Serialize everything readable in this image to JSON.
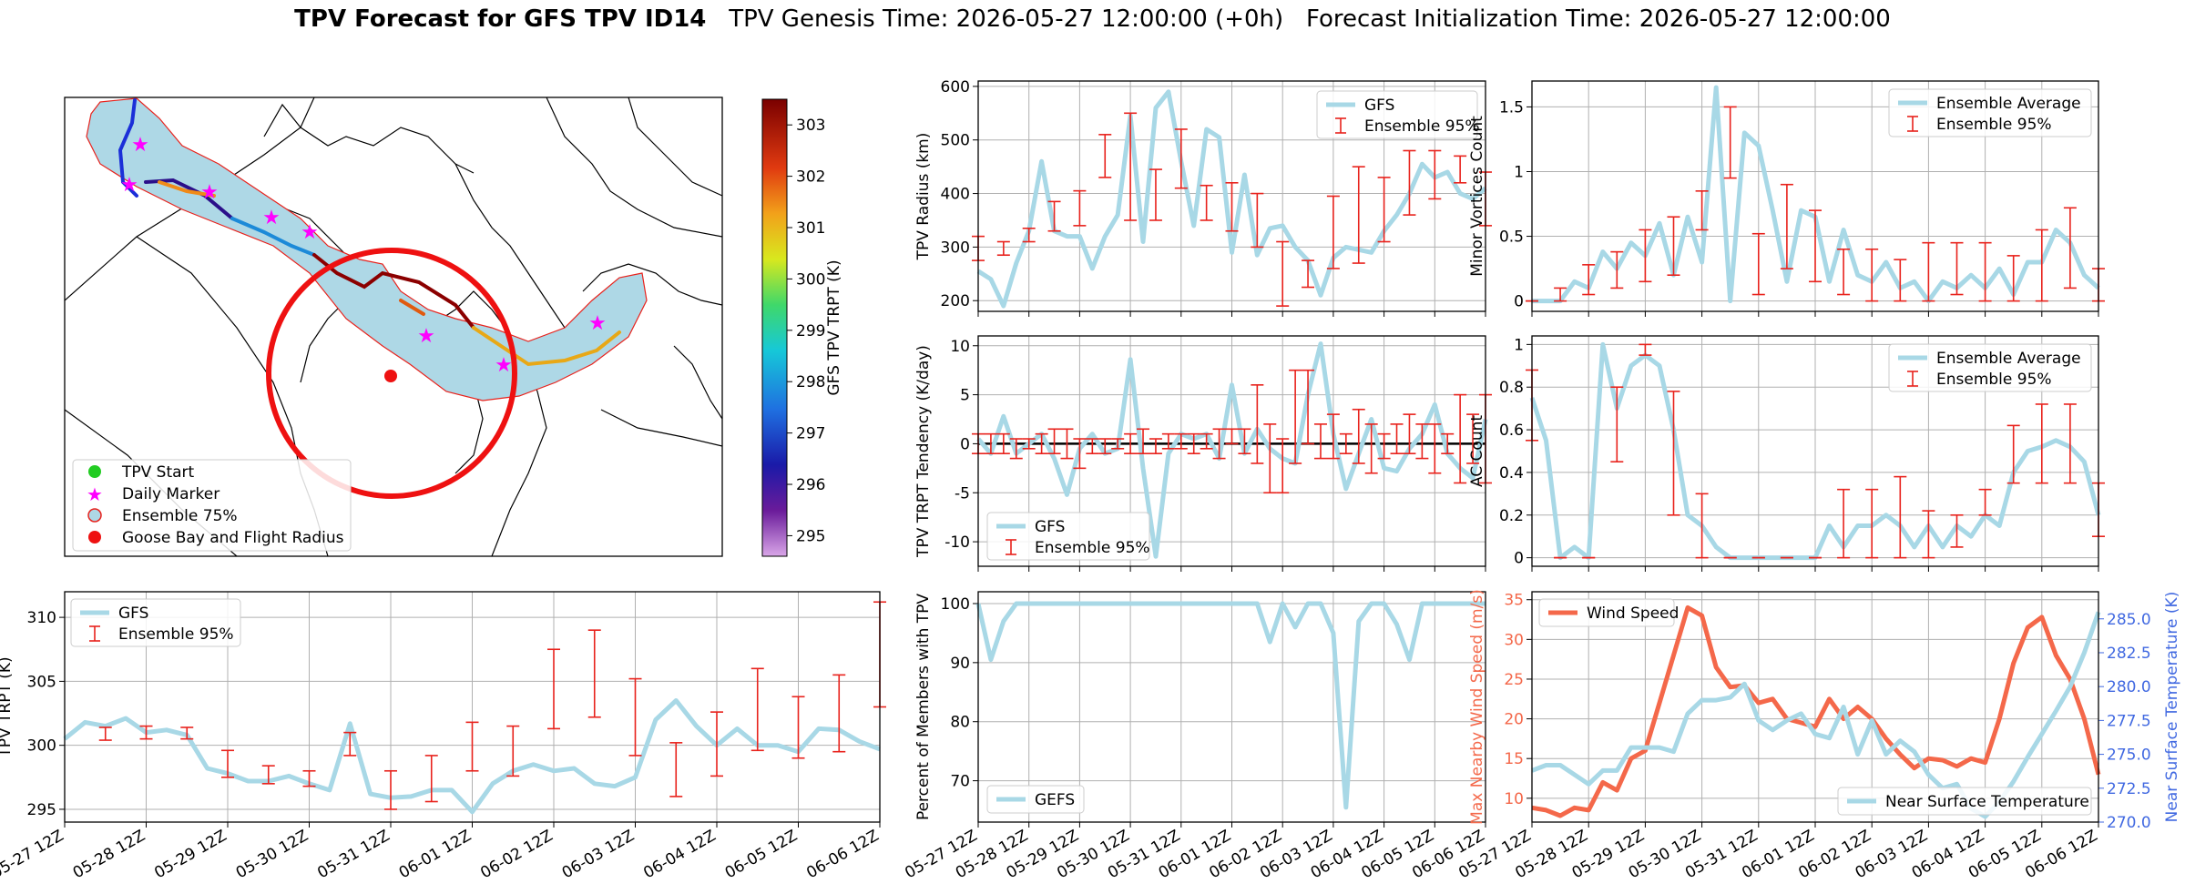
{
  "title": {
    "main": "TPV Forecast for GFS TPV ID14",
    "genesis": "TPV Genesis Time: 2026-05-27 12:00:00 (+0h)",
    "init": "Forecast Initialization Time: 2026-05-27 12:00:00"
  },
  "colors": {
    "series_light": "#a8d8e6",
    "errorbar": "#e8221c",
    "wind": "#f4684a",
    "temp_axis": "#4169e1",
    "circle": "#ee1111",
    "land_fill": "#aed8e6"
  },
  "time_ticks": [
    "05-27 12Z",
    "05-28 12Z",
    "05-29 12Z",
    "05-30 12Z",
    "05-31 12Z",
    "06-01 12Z",
    "06-02 12Z",
    "06-03 12Z",
    "06-04 12Z",
    "06-05 12Z",
    "06-06 12Z"
  ],
  "map": {
    "colorbar_label": "GFS TPV TRPT (K)",
    "colorbar_ticks": [
      "295",
      "296",
      "297",
      "298",
      "299",
      "300",
      "301",
      "302",
      "303"
    ],
    "legend": [
      {
        "label": "TPV Start",
        "marker": "green-dot"
      },
      {
        "label": "Daily Marker",
        "marker": "magenta-star"
      },
      {
        "label": "Ensemble 75%",
        "marker": "lightblue-circle"
      },
      {
        "label": "Goose Bay and Flight Radius",
        "marker": "red-dot"
      }
    ]
  },
  "chart_data": [
    {
      "id": "radius",
      "type": "line",
      "ylabel": "TPV Radius (km)",
      "ylim": [
        180,
        610
      ],
      "yticks": [
        200,
        300,
        400,
        500,
        600
      ],
      "x_range": [
        0,
        40
      ],
      "series": [
        {
          "name": "GFS",
          "values": [
            255,
            240,
            190,
            270,
            330,
            460,
            330,
            320,
            320,
            260,
            320,
            360,
            545,
            310,
            560,
            590,
            460,
            340,
            520,
            505,
            290,
            435,
            285,
            335,
            340,
            300,
            275,
            210,
            280,
            300,
            295,
            290,
            330,
            360,
            400,
            455,
            430,
            440,
            400,
            390,
            410
          ]
        }
      ],
      "errorbars": {
        "name": "Ensemble 95%",
        "x": [
          0,
          2,
          4,
          6,
          8,
          10,
          12,
          14,
          16,
          18,
          20,
          22,
          24,
          26,
          28,
          30,
          32,
          34,
          36,
          38,
          40
        ],
        "low": [
          275,
          285,
          310,
          330,
          340,
          430,
          350,
          350,
          410,
          350,
          330,
          300,
          190,
          225,
          260,
          270,
          310,
          360,
          390,
          420,
          340
        ],
        "high": [
          320,
          310,
          335,
          385,
          405,
          510,
          550,
          445,
          520,
          415,
          420,
          400,
          310,
          275,
          395,
          450,
          430,
          480,
          480,
          470,
          440
        ]
      },
      "legend_pos": "upper right",
      "grid": true
    },
    {
      "id": "tendency",
      "type": "line",
      "ylabel": "TPV TRPT Tendency (K/day)",
      "ylim": [
        -12.5,
        11
      ],
      "yticks": [
        -10,
        -5,
        0,
        5,
        10
      ],
      "x_range": [
        0,
        40
      ],
      "zero_line": true,
      "series": [
        {
          "name": "GFS",
          "values": [
            0.5,
            -1,
            2.8,
            -1,
            0,
            1,
            -1.5,
            -5.2,
            -0.5,
            1,
            -1,
            -0.5,
            8.6,
            -2.5,
            -11.5,
            -1,
            1,
            0.5,
            1,
            -1.5,
            6,
            -1,
            1.5,
            -0.5,
            -1.5,
            -2,
            5,
            10.2,
            1,
            -4.6,
            -1,
            2.5,
            -2.5,
            -2.8,
            -0.5,
            1,
            4,
            -1,
            -2.5,
            -3.5,
            2.5
          ]
        }
      ],
      "errorbars": {
        "name": "Ensemble 95%",
        "x": [
          0,
          1,
          2,
          3,
          4,
          5,
          6,
          7,
          8,
          9,
          10,
          11,
          12,
          13,
          14,
          15,
          16,
          17,
          18,
          19,
          20,
          21,
          22,
          23,
          24,
          25,
          26,
          27,
          28,
          29,
          30,
          31,
          32,
          33,
          34,
          35,
          36,
          37,
          38,
          39,
          40
        ],
        "low": [
          -1,
          -1,
          -1,
          -1.5,
          -0.5,
          -1,
          -1,
          -1.5,
          -2.5,
          -1,
          -1,
          -0.5,
          -1,
          -1,
          -1,
          -0.5,
          -0.5,
          -1,
          -0.5,
          -1.5,
          0,
          -1,
          -2,
          -5,
          -5,
          -2,
          0,
          -1.5,
          -1.5,
          -1,
          -2,
          -3,
          -1.5,
          -1,
          -1,
          -1.5,
          -3,
          -1,
          -4,
          -2,
          -4
        ],
        "high": [
          1,
          1,
          1,
          0.5,
          0.5,
          1,
          1.5,
          1.5,
          0.5,
          0.5,
          0.5,
          0.5,
          1,
          1.5,
          0.5,
          1,
          1,
          1,
          1,
          1.5,
          1.5,
          1.5,
          6,
          2,
          0.5,
          7.5,
          7.5,
          2,
          3,
          1,
          3.5,
          2,
          1,
          2,
          3,
          2,
          2,
          1,
          5,
          3,
          5
        ]
      },
      "legend_pos": "lower left",
      "grid": true
    },
    {
      "id": "members",
      "type": "line",
      "ylabel": "Percent of Members with TPV",
      "ylim": [
        63,
        102
      ],
      "yticks": [
        70,
        80,
        90,
        100
      ],
      "x_range": [
        0,
        40
      ],
      "series": [
        {
          "name": "GEFS",
          "values": [
            100,
            90.5,
            97,
            100,
            100,
            100,
            100,
            100,
            100,
            100,
            100,
            100,
            100,
            100,
            100,
            100,
            100,
            100,
            100,
            100,
            100,
            100,
            100,
            93.5,
            100,
            96,
            100,
            100,
            95,
            65.5,
            97,
            100,
            100,
            96.5,
            90.5,
            100,
            100,
            100,
            100,
            100,
            100
          ]
        }
      ],
      "legend_pos": "lower left",
      "grid": true
    },
    {
      "id": "minor_vortices",
      "type": "line",
      "ylabel": "Minor Vortices Count",
      "ylim": [
        -0.08,
        1.7
      ],
      "yticks": [
        0.0,
        0.5,
        1.0,
        1.5
      ],
      "x_range": [
        0,
        40
      ],
      "series": [
        {
          "name": "Ensemble Average",
          "values": [
            0,
            0,
            0,
            0.15,
            0.1,
            0.38,
            0.25,
            0.45,
            0.35,
            0.6,
            0.2,
            0.65,
            0.3,
            1.65,
            0,
            1.3,
            1.2,
            0.7,
            0.15,
            0.7,
            0.65,
            0.15,
            0.55,
            0.2,
            0.15,
            0.3,
            0.1,
            0.15,
            0,
            0.15,
            0.1,
            0.2,
            0.1,
            0.25,
            0.05,
            0.3,
            0.3,
            0.55,
            0.45,
            0.2,
            0.1
          ]
        }
      ],
      "errorbars": {
        "name": "Ensemble 95%",
        "x": [
          0,
          2,
          4,
          6,
          8,
          10,
          12,
          14,
          16,
          18,
          20,
          22,
          24,
          26,
          28,
          30,
          32,
          34,
          36,
          38,
          40
        ],
        "low": [
          0,
          0,
          0.05,
          0.1,
          0.15,
          0.2,
          0.55,
          0.95,
          0.05,
          0.25,
          0.15,
          0.05,
          0,
          0,
          0,
          0.05,
          0,
          0,
          0,
          0.1,
          0
        ],
        "high": [
          0,
          0.1,
          0.28,
          0.38,
          0.55,
          0.65,
          0.85,
          1.5,
          0.52,
          0.9,
          0.7,
          0.4,
          0.4,
          0.32,
          0.45,
          0.45,
          0.45,
          0.35,
          0.55,
          0.72,
          0.25
        ]
      },
      "legend_pos": "upper right",
      "grid": true
    },
    {
      "id": "ac_count",
      "type": "line",
      "ylabel": "AC Count",
      "ylim": [
        -0.04,
        1.04
      ],
      "yticks": [
        0.0,
        0.2,
        0.4,
        0.6,
        0.8,
        1.0
      ],
      "x_range": [
        0,
        40
      ],
      "series": [
        {
          "name": "Ensemble Average",
          "values": [
            0.75,
            0.55,
            0,
            0.05,
            0,
            1,
            0.7,
            0.9,
            0.95,
            0.9,
            0.6,
            0.2,
            0.15,
            0.05,
            0,
            0,
            0,
            0,
            0,
            0,
            0,
            0.15,
            0.05,
            0.15,
            0.15,
            0.2,
            0.15,
            0.05,
            0.15,
            0.05,
            0.15,
            0.1,
            0.2,
            0.15,
            0.4,
            0.5,
            0.52,
            0.55,
            0.52,
            0.45,
            0.2
          ]
        }
      ],
      "errorbars": {
        "name": "Ensemble 95%",
        "x": [
          0,
          2,
          4,
          6,
          8,
          10,
          12,
          14,
          16,
          18,
          20,
          22,
          24,
          26,
          28,
          30,
          32,
          34,
          36,
          38,
          40
        ],
        "low": [
          0.55,
          0,
          0,
          0.45,
          0.95,
          0.2,
          0,
          0,
          0,
          0,
          0,
          0,
          0,
          0,
          0,
          0.05,
          0.2,
          0.35,
          0.35,
          0.35,
          0.1
        ],
        "high": [
          0.88,
          0,
          0,
          0.8,
          1.0,
          0.78,
          0.3,
          0,
          0,
          0,
          0,
          0.32,
          0.32,
          0.38,
          0.22,
          0.2,
          0.32,
          0.62,
          0.72,
          0.72,
          0.35
        ]
      },
      "legend_pos": "upper right",
      "grid": true
    },
    {
      "id": "trpt",
      "type": "line",
      "ylabel": "TPV TRPT (K)",
      "ylim": [
        294,
        312
      ],
      "yticks": [
        295,
        300,
        305,
        310
      ],
      "x_range": [
        0,
        40
      ],
      "series": [
        {
          "name": "GFS",
          "values": [
            300.5,
            301.8,
            301.5,
            302.1,
            301,
            301.2,
            300.8,
            298.2,
            297.8,
            297.2,
            297.2,
            297.6,
            297,
            296.5,
            301.7,
            296.2,
            295.9,
            296,
            296.5,
            296.5,
            294.8,
            297,
            298,
            298.5,
            298,
            298.2,
            297,
            296.8,
            297.5,
            302,
            303.5,
            301.5,
            300,
            301.3,
            300,
            300,
            299.5,
            301.3,
            301.2,
            300.3,
            299.7
          ]
        }
      ],
      "errorbars": {
        "name": "Ensemble 95%",
        "x": [
          2,
          4,
          6,
          8,
          10,
          12,
          14,
          16,
          18,
          20,
          22,
          24,
          26,
          28,
          30,
          32,
          34,
          36,
          38,
          40
        ],
        "low": [
          300.4,
          300.5,
          300.5,
          297.5,
          297,
          296.8,
          299.2,
          295,
          295.6,
          298,
          297.6,
          301.3,
          302.2,
          299.2,
          296,
          297.6,
          299.6,
          299,
          299.5,
          303
        ],
        "high": [
          301.4,
          301.5,
          301.4,
          299.6,
          298.4,
          298,
          301,
          298,
          299.2,
          301.8,
          301.5,
          307.5,
          309,
          305.2,
          300.2,
          302.6,
          306,
          303.8,
          305.5,
          311.2
        ]
      },
      "legend_pos": "upper left",
      "grid": true
    },
    {
      "id": "wind_temp",
      "type": "line",
      "ylabel": "Max Nearby Wind Speed (m/s)",
      "ylabel_right": "Near Surface Temperature (K)",
      "ylim": [
        7,
        36
      ],
      "yticks": [
        10,
        15,
        20,
        25,
        30,
        35
      ],
      "ylim_right": [
        270,
        287
      ],
      "yticks_right": [
        270.0,
        272.5,
        275.0,
        277.5,
        280.0,
        282.5,
        285.0
      ],
      "x_range": [
        0,
        40
      ],
      "series": [
        {
          "name": "Wind Speed",
          "axis": "left",
          "values": [
            8.8,
            8.5,
            7.8,
            8.8,
            8.5,
            12,
            11,
            15,
            16,
            22,
            28,
            34,
            33,
            26.5,
            24,
            24.2,
            22,
            22.5,
            20,
            19.5,
            19,
            22.5,
            20,
            21.5,
            20,
            17.5,
            15.5,
            13.8,
            15,
            14.8,
            14,
            15,
            14.5,
            20,
            27,
            31.5,
            32.8,
            28,
            25,
            20,
            13
          ]
        },
        {
          "name": "Near Surface Temperature",
          "axis": "right",
          "values": [
            273.8,
            274.2,
            274.2,
            273.5,
            272.8,
            273.8,
            273.8,
            275.5,
            275.5,
            275.5,
            275.2,
            278,
            279,
            279,
            279.2,
            280.2,
            277.5,
            276.8,
            277.5,
            278,
            276.5,
            276.2,
            278.5,
            275,
            277.5,
            275,
            276,
            275.2,
            273.5,
            272.5,
            272.8,
            271,
            270.4,
            271.5,
            273,
            274.8,
            276.5,
            278.2,
            280,
            282.5,
            285.5
          ]
        }
      ],
      "legend_pos": "upper left / lower right",
      "grid": true
    }
  ]
}
